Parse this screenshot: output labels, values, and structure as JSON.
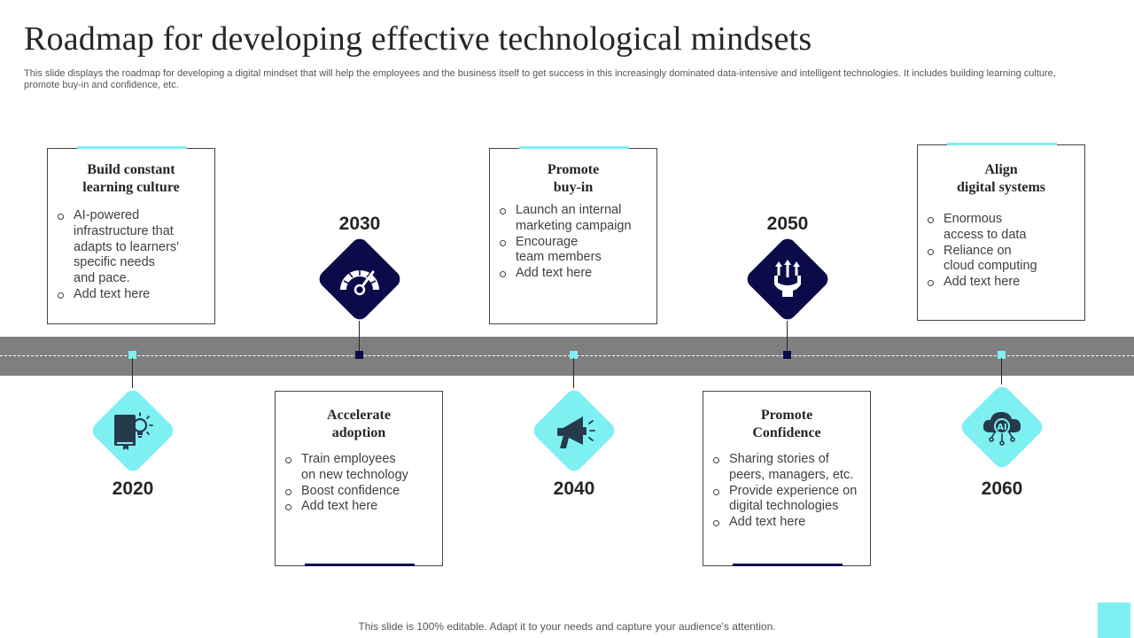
{
  "slide": {
    "title": "Roadmap for developing effective technological mindsets",
    "subtitle": "This slide displays the roadmap for developing a digital mindset that will help the employees and the business itself to get success in this increasingly dominated data-intensive and intelligent technologies. It includes building learning culture, promote buy-in and confidence, etc.",
    "footer": "This slide is 100% editable. Adapt it to your needs and capture your audience's attention."
  },
  "colors": {
    "light_accent": "#7ff0f2",
    "dark_accent": "#0b0b4a",
    "road": "#7f7f7f",
    "text": "#262626"
  },
  "milestones": [
    {
      "year": "2020",
      "icon": "book-lightbulb-icon",
      "card": {
        "title_lines": [
          "Build  constant",
          "learning culture"
        ],
        "bullets": [
          [
            "AI-powered",
            "infrastructure that",
            "adapts to learners'",
            "specific needs",
            "and pace."
          ],
          [
            "Add text here"
          ]
        ]
      }
    },
    {
      "year": "2030",
      "icon": "speedometer-icon",
      "card": {
        "title_lines": [
          "Accelerate",
          "adoption"
        ],
        "bullets": [
          [
            "Train employees",
            "on new technology"
          ],
          [
            "Boost confidence"
          ],
          [
            "Add text here"
          ]
        ]
      }
    },
    {
      "year": "2040",
      "icon": "megaphone-icon",
      "card": {
        "title_lines": [
          "Promote",
          "buy-in"
        ],
        "bullets": [
          [
            "Launch an internal",
            "marketing campaign"
          ],
          [
            "Encourage",
            "team members"
          ],
          [
            "Add text here"
          ]
        ]
      }
    },
    {
      "year": "2050",
      "icon": "hand-arrows-up-icon",
      "card": {
        "title_lines": [
          "Promote",
          "Confidence"
        ],
        "bullets": [
          [
            "Sharing stories of",
            "peers, managers, etc."
          ],
          [
            "Provide experience on",
            "digital technologies"
          ],
          [
            "Add text here"
          ]
        ]
      }
    },
    {
      "year": "2060",
      "icon": "ai-cloud-icon",
      "card": {
        "title_lines": [
          "Align",
          "digital systems"
        ],
        "bullets": [
          [
            "Enormous",
            "access to data"
          ],
          [
            "Reliance on",
            "cloud computing"
          ],
          [
            "Add text here"
          ]
        ]
      }
    }
  ]
}
